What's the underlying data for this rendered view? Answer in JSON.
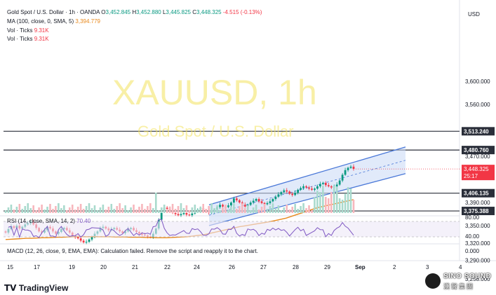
{
  "header": {
    "symbol": "Gold Spot / U.S. Dollar · 1h · OANDA",
    "ohlc": [
      {
        "label": "O",
        "value": "3,452.845"
      },
      {
        "label": "H",
        "value": "3,452.880"
      },
      {
        "label": "L",
        "value": "3,445.825"
      },
      {
        "label": "C",
        "value": "3,448.325"
      }
    ],
    "change": "-4.515 (-0.13%)",
    "ma_label": "MA (100, close, 0, SMA, 5)",
    "ma_value": "3,394.779",
    "vol1_label": "Vol · Ticks",
    "vol1_value": "9.31K",
    "vol2_label": "Vol · Ticks",
    "vol2_value": "9.31K",
    "rsi_label": "RSI (14, close, SMA, 14, 2)",
    "rsi_value": "70.40",
    "macd_label": "MACD (12, 26, close, 9, EMA, EMA): Calculation failed. Remove the script and reapply it to the chart."
  },
  "watermark": {
    "symbol": "XAUUSD, 1h",
    "name": "Gold Spot / U.S. Dollar"
  },
  "currency": "USD",
  "current_price": {
    "value": "3,448.325",
    "countdown": "25:17"
  },
  "logo": {
    "text": "TradingView"
  },
  "brand": {
    "line1": "SINO SOUND",
    "line2": "漢聲集團"
  },
  "colors": {
    "up": "#089981",
    "down": "#f23645",
    "ma": "#e8891d",
    "channel": "#4a78d8",
    "channel_fill": "#c9d9f6",
    "rsi": "#7e57c2",
    "hline": "#2a2e39"
  },
  "chart_data": {
    "type": "candlestick",
    "price_axis": {
      "ticks": [
        "3,600.000",
        "3,560.000",
        "3,470.000",
        "3,390.000",
        "3,350.000",
        "3,320.000",
        "3,290.000",
        "3,258.000"
      ],
      "tick_values": [
        3600,
        3560,
        3470,
        3390,
        3350,
        3320,
        3290,
        3258
      ]
    },
    "time_axis": {
      "labels": [
        "15",
        "17",
        "19",
        "20",
        "21",
        "22",
        "24",
        "26",
        "27",
        "28",
        "29",
        "Sep",
        "2",
        "3",
        "4"
      ]
    },
    "horizontal_levels": [
      {
        "value": 3513.24,
        "label": "3,513.240"
      },
      {
        "value": 3480.76,
        "label": "3,480.760"
      },
      {
        "value": 3406.135,
        "label": "3,406.135"
      },
      {
        "value": 3375.388,
        "label": "3,375.388"
      }
    ],
    "close_series": [
      3338,
      3344,
      3349,
      3346,
      3350,
      3345,
      3348,
      3352,
      3354,
      3357,
      3352,
      3346,
      3340,
      3338,
      3342,
      3348,
      3345,
      3340,
      3336,
      3339,
      3344,
      3346,
      3342,
      3338,
      3333,
      3330,
      3328,
      3324,
      3321,
      3322,
      3326,
      3330,
      3336,
      3340,
      3346,
      3348,
      3345,
      3342,
      3344,
      3346,
      3343,
      3340,
      3337,
      3340,
      3344,
      3346,
      3342,
      3339,
      3336,
      3334,
      3333,
      3331,
      3330,
      3336,
      3345,
      3360,
      3376,
      3381,
      3379,
      3376,
      3372,
      3370,
      3368,
      3370,
      3372,
      3369,
      3368,
      3371,
      3375,
      3378,
      3380,
      3376,
      3374,
      3372,
      3374,
      3378,
      3382,
      3386,
      3383,
      3382,
      3385,
      3390,
      3397,
      3394,
      3390,
      3386,
      3383,
      3386,
      3390,
      3393,
      3396,
      3392,
      3389,
      3387,
      3389,
      3392,
      3396,
      3400,
      3404,
      3408,
      3411,
      3409,
      3405,
      3403,
      3407,
      3412,
      3415,
      3418,
      3416,
      3414,
      3412,
      3414,
      3418,
      3422,
      3424,
      3420,
      3418,
      3416,
      3418,
      3421,
      3428,
      3438,
      3446,
      3450,
      3452,
      3448
    ],
    "ma_series": [
      3326,
      3326.5,
      3327,
      3327.5,
      3328,
      3328,
      3328.5,
      3329,
      3329,
      3329.5,
      3330,
      3330,
      3330.5,
      3331,
      3331,
      3331,
      3331,
      3331,
      3331,
      3331,
      3331,
      3330.5,
      3330.5,
      3330.5,
      3330,
      3330,
      3330,
      3329.5,
      3329.5,
      3329,
      3329,
      3329,
      3329.5,
      3330,
      3330.5,
      3331,
      3332,
      3333,
      3334,
      3336,
      3338,
      3340,
      3342,
      3344,
      3346,
      3348,
      3349.5,
      3351,
      3352.5,
      3354,
      3355.5,
      3357,
      3359,
      3361,
      3363,
      3366,
      3369,
      3372,
      3375,
      3378,
      3381,
      3383,
      3385,
      3387,
      3389,
      3391,
      3393,
      3395
    ],
    "rsi": {
      "value": 70.4,
      "levels": [
        80,
        40
      ],
      "axis_labels": [
        "80.00",
        "40.00"
      ]
    },
    "macd": {
      "axis_label": "0.000"
    }
  }
}
